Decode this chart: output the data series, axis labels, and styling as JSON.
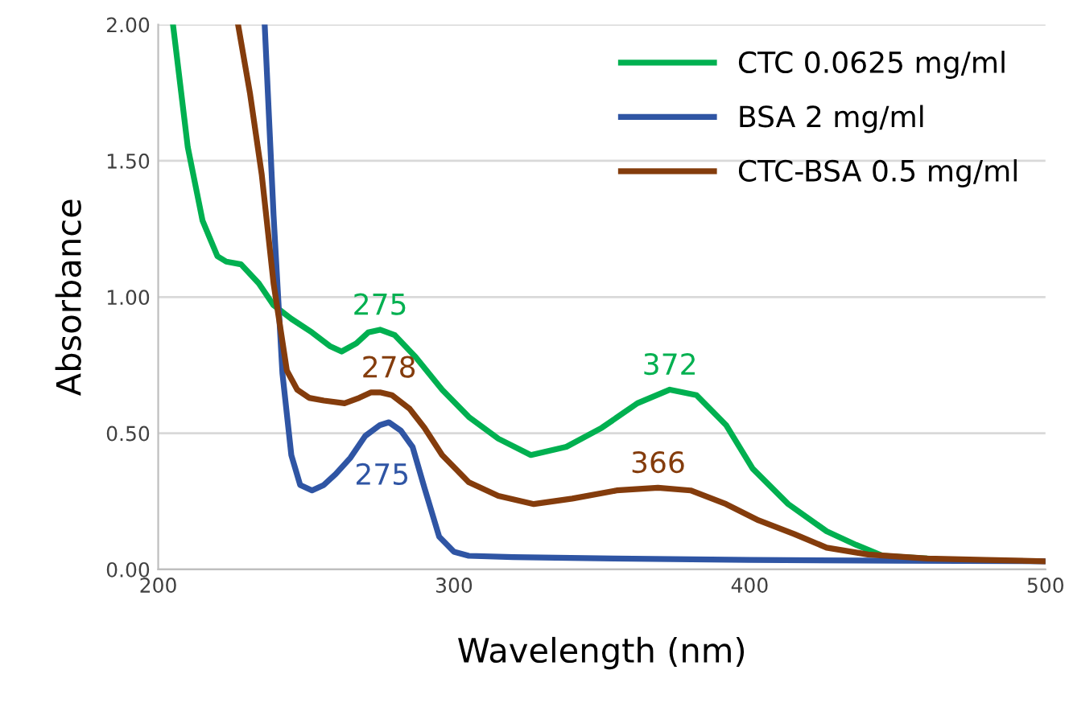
{
  "chart_data": {
    "type": "line",
    "xlabel": "Wavelength (nm)",
    "ylabel": "Absorbance",
    "xlim": [
      200,
      500
    ],
    "xticks": [
      200,
      300,
      400,
      500
    ],
    "ylim": [
      0,
      2
    ],
    "yticks": [
      {
        "value": 0,
        "label": "0.00"
      },
      {
        "value": 0.5,
        "label": "0.50"
      },
      {
        "value": 1,
        "label": "1.00"
      },
      {
        "value": 1.5,
        "label": "1.50"
      },
      {
        "value": 2,
        "label": "2.00"
      }
    ],
    "grid": "y",
    "legend": "top right",
    "series": [
      {
        "name": "CTC 0.0625 mg/ml",
        "color": "#00b050",
        "x": [
          205,
          210,
          215,
          220,
          223,
          228,
          234,
          239,
          245,
          252,
          258,
          262,
          267,
          271,
          275,
          280,
          287,
          296,
          305,
          315,
          326,
          338,
          350,
          362,
          373,
          382,
          392,
          401,
          413,
          426,
          436,
          445,
          460
        ],
        "values": [
          2.0,
          1.55,
          1.28,
          1.15,
          1.13,
          1.12,
          1.05,
          0.97,
          0.92,
          0.87,
          0.82,
          0.8,
          0.83,
          0.87,
          0.88,
          0.86,
          0.78,
          0.66,
          0.56,
          0.48,
          0.42,
          0.45,
          0.52,
          0.61,
          0.66,
          0.64,
          0.53,
          0.37,
          0.24,
          0.14,
          0.09,
          0.05,
          0.04
        ]
      },
      {
        "name": "BSA 2 mg/ml",
        "color": "#2f55a4",
        "x": [
          236,
          239,
          242,
          245,
          248,
          252,
          256,
          260,
          265,
          270,
          275,
          278,
          282,
          286,
          290,
          295,
          300,
          305,
          320,
          354,
          400,
          450,
          500
        ],
        "values": [
          2.0,
          1.3,
          0.72,
          0.42,
          0.31,
          0.29,
          0.31,
          0.35,
          0.41,
          0.49,
          0.53,
          0.54,
          0.51,
          0.45,
          0.3,
          0.12,
          0.065,
          0.05,
          0.045,
          0.04,
          0.035,
          0.032,
          0.03
        ]
      },
      {
        "name": "CTC-BSA 0.5 mg/ml",
        "color": "#843c0c",
        "x": [
          227,
          231,
          235,
          239,
          243.5,
          247,
          251,
          256,
          263,
          268,
          272,
          275,
          279,
          285,
          290,
          296,
          305,
          315,
          327,
          340,
          355,
          369,
          380,
          392,
          403,
          415,
          426,
          440,
          460,
          480,
          500
        ],
        "values": [
          2.0,
          1.75,
          1.45,
          1.05,
          0.73,
          0.66,
          0.63,
          0.62,
          0.61,
          0.63,
          0.65,
          0.65,
          0.64,
          0.59,
          0.52,
          0.42,
          0.32,
          0.27,
          0.24,
          0.26,
          0.29,
          0.3,
          0.29,
          0.24,
          0.18,
          0.13,
          0.08,
          0.055,
          0.04,
          0.035,
          0.03
        ]
      }
    ],
    "annotations": [
      {
        "text": "275",
        "x": 275,
        "y": 0.88
      },
      {
        "text": "278",
        "x": 278,
        "y": 0.65
      },
      {
        "text": "275",
        "x": 278,
        "y": 0.54
      },
      {
        "text": "372",
        "x": 373,
        "y": 0.66
      },
      {
        "text": "366",
        "x": 369,
        "y": 0.3
      }
    ]
  }
}
